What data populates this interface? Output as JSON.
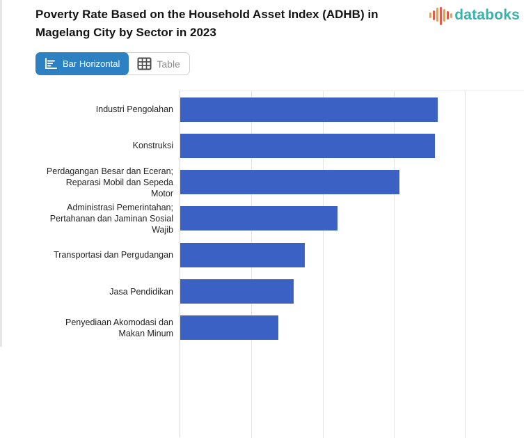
{
  "header": {
    "title": "Poverty Rate Based on the Household Asset Index (ADHB) in Magelang City by Sector in 2023",
    "brand": {
      "name": "databoks",
      "text_color": "#38b2ab",
      "icon_bar_colors": [
        "#f59d38",
        "#e25c49",
        "#f59d38",
        "#e25c49",
        "#f59d38",
        "#e25c49",
        "#f59d38"
      ],
      "icon_bar_heights": [
        8,
        14,
        20,
        26,
        18,
        12,
        7
      ],
      "icon_bar_offsets": [
        0,
        0,
        -2,
        2,
        0,
        0,
        0
      ]
    }
  },
  "toolbar": {
    "bar_horizontal_label": "Bar Horizontal",
    "table_label": "Table",
    "active_bg": "#2d80c2",
    "active_text": "#ffffff",
    "inactive_text": "#8b8b8b"
  },
  "chart_data": {
    "type": "bar",
    "orientation": "horizontal",
    "title": "Poverty Rate Based on the Household Asset Index (ADHB) in Magelang City by Sector in 2023",
    "categories": [
      "Industri Pengolahan",
      "Konstruksi",
      "Perdagangan Besar dan Eceran; Reparasi Mobil dan Sepeda Motor",
      "Administrasi Pemerintahan; Pertahanan dan Jaminan Sosial Wajib",
      "Transportasi dan Pergudangan",
      "Jasa Pendidikan",
      "Penyediaan Akomodasi dan Makan Minum"
    ],
    "values": [
      74.7,
      73.9,
      63.6,
      45.7,
      36.2,
      32.9,
      28.5
    ],
    "value_unit": "percent of visible plot width (value-axis tick labels not visible in screenshot)",
    "xlabel": "",
    "ylabel": "",
    "xlim": [
      0,
      100
    ],
    "grid": true,
    "gridline_percents": [
      20.7,
      41.4,
      62.1,
      82.8
    ],
    "bar_color": "#3b61c4",
    "gridline_color": "#e3e3e3",
    "axis_line_color": "#d6d6d6",
    "legend": "none"
  }
}
